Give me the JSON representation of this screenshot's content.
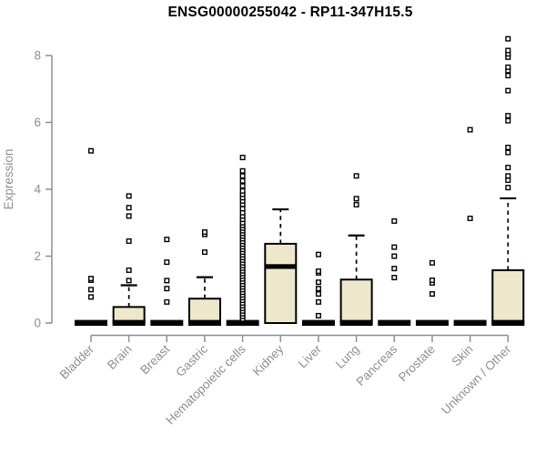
{
  "chart_data": {
    "type": "boxplot",
    "title": "ENSG00000255042 - RP11-347H15.5",
    "ylabel": "Expression",
    "xlabel": "",
    "ylim": [
      0,
      8
    ],
    "yticks": [
      0,
      2,
      4,
      6,
      8
    ],
    "grid": false,
    "legend": false,
    "categories": [
      "Bladder",
      "Brain",
      "Breast",
      "Gastric",
      "Hematopoietic cells",
      "Kidney",
      "Liver",
      "Lung",
      "Pancreas",
      "Prostate",
      "Skin",
      "Unknown / Other"
    ],
    "series": [
      {
        "name": "Bladder",
        "q1": 0,
        "median": 0,
        "q3": 0,
        "whisker_low": 0,
        "whisker_high": 0,
        "outliers": [
          0.78,
          1.0,
          1.28,
          1.33,
          5.15
        ]
      },
      {
        "name": "Brain",
        "q1": 0,
        "median": 0,
        "q3": 0.48,
        "whisker_low": 0,
        "whisker_high": 1.13,
        "outliers": [
          1.27,
          1.58,
          2.45,
          3.2,
          3.45,
          3.8
        ]
      },
      {
        "name": "Breast",
        "q1": 0,
        "median": 0,
        "q3": 0,
        "whisker_low": 0,
        "whisker_high": 0,
        "outliers": [
          0.63,
          1.03,
          1.27,
          1.82,
          2.5
        ]
      },
      {
        "name": "Gastric",
        "q1": 0,
        "median": 0,
        "q3": 0.73,
        "whisker_low": 0,
        "whisker_high": 1.37,
        "outliers": [
          2.12,
          2.65,
          2.72
        ]
      },
      {
        "name": "Hematopoietic cells",
        "q1": 0,
        "median": 0,
        "q3": 0,
        "whisker_low": 0,
        "whisker_high": 0,
        "outliers": [
          0.12,
          0.2,
          0.28,
          0.36,
          0.44,
          0.52,
          0.6,
          0.68,
          0.76,
          0.84,
          0.92,
          1.0,
          1.08,
          1.16,
          1.24,
          1.32,
          1.4,
          1.48,
          1.56,
          1.64,
          1.72,
          1.8,
          1.88,
          1.96,
          2.04,
          2.12,
          2.2,
          2.28,
          2.36,
          2.44,
          2.52,
          2.6,
          2.68,
          2.76,
          2.84,
          2.92,
          3.0,
          3.1,
          3.2,
          3.3,
          3.42,
          3.55,
          3.65,
          3.75,
          3.85,
          3.95,
          4.1,
          4.25,
          4.4,
          4.55,
          4.95
        ]
      },
      {
        "name": "Kidney",
        "q1": 0,
        "median": 1.69,
        "q3": 2.37,
        "whisker_low": 0,
        "whisker_high": 3.4,
        "outliers": []
      },
      {
        "name": "Liver",
        "q1": 0,
        "median": 0,
        "q3": 0,
        "whisker_low": 0,
        "whisker_high": 0,
        "outliers": [
          0.22,
          0.63,
          0.87,
          1.03,
          1.22,
          1.5,
          1.55,
          2.05
        ]
      },
      {
        "name": "Lung",
        "q1": 0,
        "median": 0,
        "q3": 1.3,
        "whisker_low": 0,
        "whisker_high": 2.62,
        "outliers": [
          3.54,
          3.72,
          4.4
        ]
      },
      {
        "name": "Pancreas",
        "q1": 0,
        "median": 0,
        "q3": 0,
        "whisker_low": 0,
        "whisker_high": 0,
        "outliers": [
          1.36,
          1.63,
          2.0,
          2.27,
          3.05
        ]
      },
      {
        "name": "Prostate",
        "q1": 0,
        "median": 0,
        "q3": 0,
        "whisker_low": 0,
        "whisker_high": 0,
        "outliers": [
          0.87,
          1.2,
          1.28,
          1.8
        ]
      },
      {
        "name": "Skin",
        "q1": 0,
        "median": 0,
        "q3": 0,
        "whisker_low": 0,
        "whisker_high": 0,
        "outliers": [
          3.13,
          5.78
        ]
      },
      {
        "name": "Unknown / Other",
        "q1": 0,
        "median": 0,
        "q3": 1.58,
        "whisker_low": 0,
        "whisker_high": 3.73,
        "outliers": [
          4.05,
          4.27,
          4.4,
          4.65,
          5.1,
          5.25,
          6.05,
          6.2,
          6.95,
          7.4,
          7.55,
          7.65,
          7.95,
          8.05,
          8.15,
          8.5
        ]
      }
    ],
    "colors": {
      "box_fill": "#ede8cc",
      "box_stroke": "#000000",
      "median": "#000000",
      "outlier_stroke": "#000000",
      "outlier_fill": "#ffffff",
      "axis": "#8f8f8f",
      "tick_label": "#8f8f8f",
      "title": "#000000",
      "background": "#ffffff"
    }
  }
}
